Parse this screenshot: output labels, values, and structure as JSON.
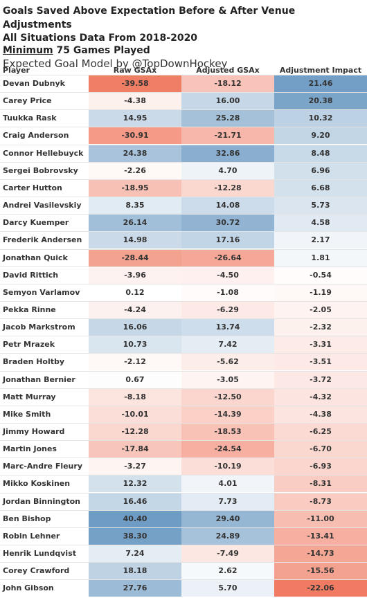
{
  "titles": {
    "line1": "Goals Saved Above Expectation Before & After Venue Adjustments",
    "line2": "All Situations Data From 2018-2020",
    "line3_underlined": "Minimum",
    "line3_rest": " 75 Games Played",
    "line4": "Expected Goal Model by @TopDownHockey"
  },
  "chart_data": {
    "type": "table",
    "columns": [
      "Player",
      "Raw GSAx",
      "Adjusted GSAx",
      "Adjustment Impact"
    ],
    "colors": {
      "positive": "#6f9cc4",
      "negative": "#f07b62"
    },
    "rows": [
      {
        "player": "Devan Dubnyk",
        "raw": "-39.58",
        "adjusted": "-18.12",
        "impact": "21.46"
      },
      {
        "player": "Carey Price",
        "raw": "-4.38",
        "adjusted": "16.00",
        "impact": "20.38"
      },
      {
        "player": "Tuukka Rask",
        "raw": "14.95",
        "adjusted": "25.28",
        "impact": "10.32"
      },
      {
        "player": "Craig Anderson",
        "raw": "-30.91",
        "adjusted": "-21.71",
        "impact": "9.20"
      },
      {
        "player": "Connor Hellebuyck",
        "raw": "24.38",
        "adjusted": "32.86",
        "impact": "8.48"
      },
      {
        "player": "Sergei Bobrovsky",
        "raw": "-2.26",
        "adjusted": "4.70",
        "impact": "6.96"
      },
      {
        "player": "Carter Hutton",
        "raw": "-18.95",
        "adjusted": "-12.28",
        "impact": "6.68"
      },
      {
        "player": "Andrei Vasilevskiy",
        "raw": "8.35",
        "adjusted": "14.08",
        "impact": "5.73"
      },
      {
        "player": "Darcy Kuemper",
        "raw": "26.14",
        "adjusted": "30.72",
        "impact": "4.58"
      },
      {
        "player": "Frederik Andersen",
        "raw": "14.98",
        "adjusted": "17.16",
        "impact": "2.17"
      },
      {
        "player": "Jonathan Quick",
        "raw": "-28.44",
        "adjusted": "-26.64",
        "impact": "1.81"
      },
      {
        "player": "David Rittich",
        "raw": "-3.96",
        "adjusted": "-4.50",
        "impact": "-0.54"
      },
      {
        "player": "Semyon Varlamov",
        "raw": "0.12",
        "adjusted": "-1.08",
        "impact": "-1.19"
      },
      {
        "player": "Pekka Rinne",
        "raw": "-4.24",
        "adjusted": "-6.29",
        "impact": "-2.05"
      },
      {
        "player": "Jacob Markstrom",
        "raw": "16.06",
        "adjusted": "13.74",
        "impact": "-2.32"
      },
      {
        "player": "Petr Mrazek",
        "raw": "10.73",
        "adjusted": "7.42",
        "impact": "-3.31"
      },
      {
        "player": "Braden Holtby",
        "raw": "-2.12",
        "adjusted": "-5.62",
        "impact": "-3.51"
      },
      {
        "player": "Jonathan Bernier",
        "raw": "0.67",
        "adjusted": "-3.05",
        "impact": "-3.72"
      },
      {
        "player": "Matt Murray",
        "raw": "-8.18",
        "adjusted": "-12.50",
        "impact": "-4.32"
      },
      {
        "player": "Mike Smith",
        "raw": "-10.01",
        "adjusted": "-14.39",
        "impact": "-4.38"
      },
      {
        "player": "Jimmy Howard",
        "raw": "-12.28",
        "adjusted": "-18.53",
        "impact": "-6.25"
      },
      {
        "player": "Martin Jones",
        "raw": "-17.84",
        "adjusted": "-24.54",
        "impact": "-6.70"
      },
      {
        "player": "Marc-Andre Fleury",
        "raw": "-3.27",
        "adjusted": "-10.19",
        "impact": "-6.93"
      },
      {
        "player": "Mikko Koskinen",
        "raw": "12.32",
        "adjusted": "4.01",
        "impact": "-8.31"
      },
      {
        "player": "Jordan Binnington",
        "raw": "16.46",
        "adjusted": "7.73",
        "impact": "-8.73"
      },
      {
        "player": "Ben Bishop",
        "raw": "40.40",
        "adjusted": "29.40",
        "impact": "-11.00"
      },
      {
        "player": "Robin Lehner",
        "raw": "38.30",
        "adjusted": "24.89",
        "impact": "-13.41"
      },
      {
        "player": "Henrik Lundqvist",
        "raw": "7.24",
        "adjusted": "-7.49",
        "impact": "-14.73"
      },
      {
        "player": "Corey Crawford",
        "raw": "18.18",
        "adjusted": "2.62",
        "impact": "-15.56"
      },
      {
        "player": "John Gibson",
        "raw": "27.76",
        "adjusted": "5.70",
        "impact": "-22.06"
      }
    ]
  }
}
